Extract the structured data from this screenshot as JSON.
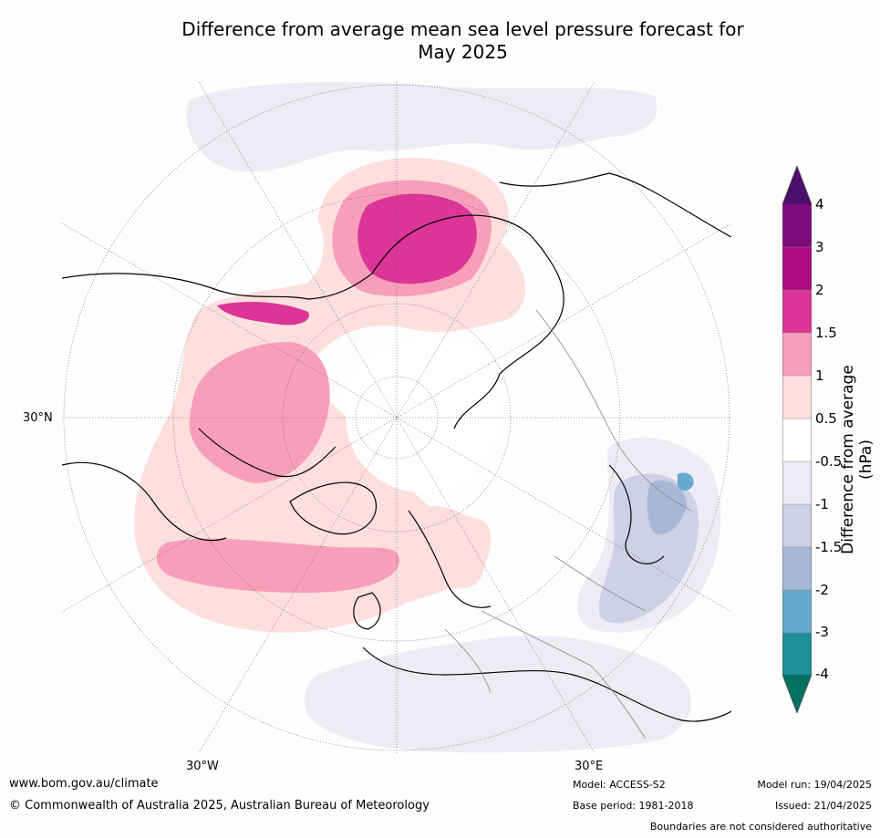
{
  "title_line1": "Difference from average mean sea level pressure forecast for",
  "title_line2": "May 2025",
  "map": {
    "projection": "north-polar-stereographic",
    "lat_tick": "30°N",
    "lon_ticks": [
      "30°W",
      "30°E"
    ],
    "graticule": "dotted"
  },
  "colorbar": {
    "title": "Difference from average (hPa)",
    "labels": [
      "4",
      "3",
      "2",
      "1.5",
      "1",
      "0.5",
      "-0.5",
      "-1",
      "-1.5",
      "-2",
      "-3",
      "-4"
    ],
    "colors": {
      "above_4": "#4a0f6b",
      "3_to_4": "#7b0c7a",
      "2_to_3": "#ad0a7f",
      "1.5_to_2": "#dd3497",
      "1_to_1.5": "#f79fba",
      "0.5_to_1": "#fde0dd",
      "neutral": "#ffffff",
      "-1_to_-0.5": "#efebf4",
      "-1.5_to_-1": "#cfd0e5",
      "-2_to_-1.5": "#a7b8d6",
      "-3_to_-2": "#67a9cf",
      "-4_to_-3": "#1c8f98",
      "below_-4": "#02705f"
    }
  },
  "footer": {
    "website": "www.bom.gov.au/climate",
    "copyright": "© Commonwealth of Australia 2025, Australian Bureau of Meteorology",
    "model": "Model: ACCESS-S2",
    "model_run": "Model run: 19/04/2025",
    "base_period": "Base period: 1981-2018",
    "issued": "Issued: 21/04/2025",
    "disclaimer": "Boundaries are not considered authoritative"
  }
}
